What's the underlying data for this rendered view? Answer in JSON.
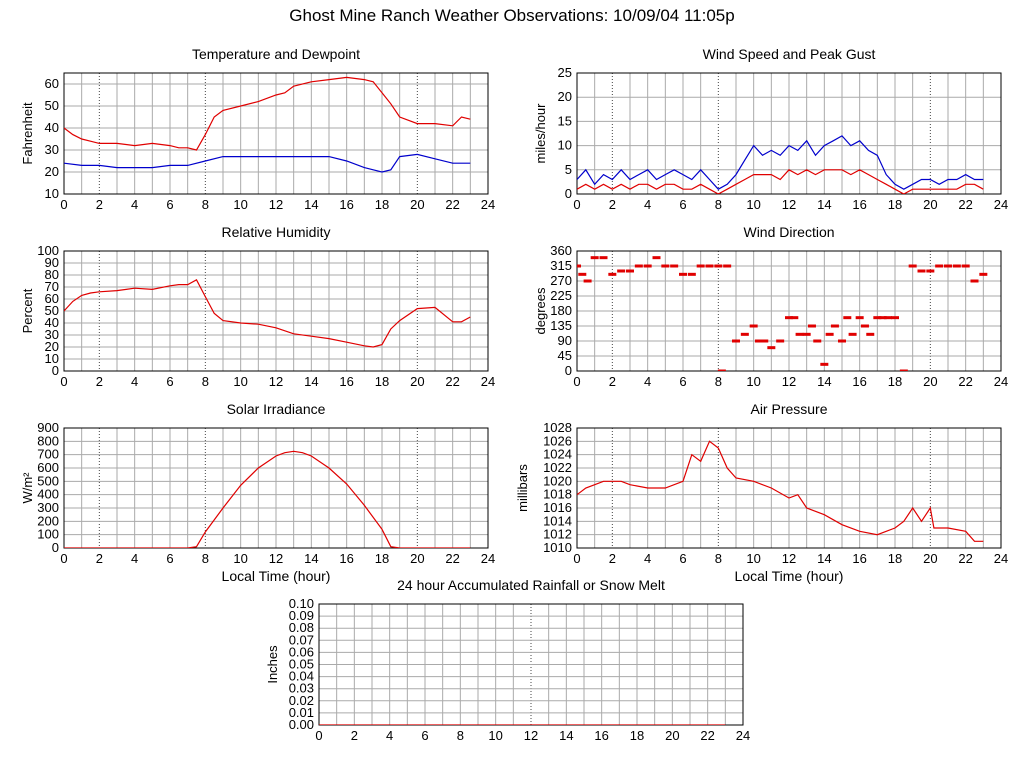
{
  "page": {
    "title": "Ghost Mine Ranch Weather Observations: 10/09/04 11:05p"
  },
  "colors": {
    "red": "#e00000",
    "blue": "#0000cc",
    "grid": "#aaaaaa",
    "major_grid": "#444444"
  },
  "chart_data": [
    {
      "id": "temp",
      "type": "line",
      "title": "Temperature and Dewpoint",
      "ylabel": "Fahrenheit",
      "xlabel": "",
      "xlim": [
        0,
        24
      ],
      "ylim": [
        10,
        65
      ],
      "yticks": [
        10,
        20,
        30,
        40,
        50,
        60
      ],
      "xticks": [
        0,
        2,
        4,
        6,
        8,
        10,
        12,
        14,
        16,
        18,
        20,
        22,
        24
      ],
      "series": [
        {
          "color": "red",
          "x": [
            0,
            0.5,
            1,
            1.5,
            2,
            3,
            4,
            5,
            6,
            6.5,
            7,
            7.5,
            8,
            8.5,
            9,
            10,
            11,
            12,
            12.5,
            13,
            14,
            15,
            16,
            17,
            17.5,
            18,
            18.5,
            19,
            20,
            21,
            22,
            22.5,
            23
          ],
          "y": [
            40,
            37,
            35,
            34,
            33,
            33,
            32,
            33,
            32,
            31,
            31,
            30,
            37,
            45,
            48,
            50,
            52,
            55,
            56,
            59,
            61,
            62,
            63,
            62,
            61,
            56,
            51,
            45,
            42,
            42,
            41,
            45,
            44
          ]
        },
        {
          "color": "blue",
          "x": [
            0,
            1,
            2,
            3,
            4,
            5,
            6,
            7,
            8,
            9,
            10,
            11,
            12,
            13,
            14,
            15,
            16,
            17,
            17.5,
            18,
            18.5,
            19,
            20,
            21,
            22,
            23
          ],
          "y": [
            24,
            23,
            23,
            22,
            22,
            22,
            23,
            23,
            25,
            27,
            27,
            27,
            27,
            27,
            27,
            27,
            25,
            22,
            21,
            20,
            21,
            27,
            28,
            26,
            24,
            24
          ]
        }
      ]
    },
    {
      "id": "wind",
      "type": "line",
      "title": "Wind Speed and Peak Gust",
      "ylabel": "miles/hour",
      "xlabel": "",
      "xlim": [
        0,
        24
      ],
      "ylim": [
        0,
        25
      ],
      "yticks": [
        0,
        5,
        10,
        15,
        20,
        25
      ],
      "xticks": [
        0,
        2,
        4,
        6,
        8,
        10,
        12,
        14,
        16,
        18,
        20,
        22,
        24
      ],
      "series": [
        {
          "color": "blue",
          "x": [
            0,
            0.5,
            1,
            1.5,
            2,
            2.5,
            3,
            3.5,
            4,
            4.5,
            5,
            5.5,
            6,
            6.5,
            7,
            7.5,
            8,
            8.5,
            9,
            9.5,
            10,
            10.5,
            11,
            11.5,
            12,
            12.5,
            13,
            13.5,
            14,
            14.5,
            15,
            15.5,
            16,
            16.5,
            17,
            17.5,
            18,
            18.5,
            19,
            19.5,
            20,
            20.5,
            21,
            21.5,
            22,
            22.5,
            23
          ],
          "y": [
            3,
            5,
            2,
            4,
            3,
            5,
            3,
            4,
            5,
            3,
            4,
            5,
            4,
            3,
            5,
            3,
            1,
            2,
            4,
            7,
            10,
            8,
            9,
            8,
            10,
            9,
            11,
            8,
            10,
            11,
            12,
            10,
            11,
            9,
            8,
            4,
            2,
            1,
            2,
            3,
            3,
            2,
            3,
            3,
            4,
            3,
            3
          ]
        },
        {
          "color": "red",
          "x": [
            0,
            0.5,
            1,
            1.5,
            2,
            2.5,
            3,
            3.5,
            4,
            4.5,
            5,
            5.5,
            6,
            6.5,
            7,
            7.5,
            8,
            8.5,
            9,
            9.5,
            10,
            10.5,
            11,
            11.5,
            12,
            12.5,
            13,
            13.5,
            14,
            14.5,
            15,
            15.5,
            16,
            16.5,
            17,
            17.5,
            18,
            18.5,
            19,
            19.5,
            20,
            20.5,
            21,
            21.5,
            22,
            22.5,
            23
          ],
          "y": [
            1,
            2,
            1,
            2,
            1,
            2,
            1,
            2,
            2,
            1,
            2,
            2,
            1,
            1,
            2,
            1,
            0,
            1,
            2,
            3,
            4,
            4,
            4,
            3,
            5,
            4,
            5,
            4,
            5,
            5,
            5,
            4,
            5,
            4,
            3,
            2,
            1,
            0,
            1,
            1,
            1,
            1,
            1,
            1,
            2,
            2,
            1
          ]
        }
      ]
    },
    {
      "id": "rh",
      "type": "line",
      "title": "Relative Humidity",
      "ylabel": "Percent",
      "xlabel": "",
      "xlim": [
        0,
        24
      ],
      "ylim": [
        0,
        100
      ],
      "yticks": [
        0,
        10,
        20,
        30,
        40,
        50,
        60,
        70,
        80,
        90,
        100
      ],
      "xticks": [
        0,
        2,
        4,
        6,
        8,
        10,
        12,
        14,
        16,
        18,
        20,
        22,
        24
      ],
      "series": [
        {
          "color": "red",
          "x": [
            0,
            0.5,
            1,
            1.5,
            2,
            3,
            4,
            5,
            6,
            6.5,
            7,
            7.5,
            8,
            8.5,
            9,
            10,
            11,
            12,
            13,
            14,
            15,
            16,
            17,
            17.5,
            18,
            18.5,
            19,
            20,
            21,
            22,
            22.5,
            23
          ],
          "y": [
            50,
            58,
            63,
            65,
            66,
            67,
            69,
            68,
            71,
            72,
            72,
            76,
            62,
            48,
            42,
            40,
            39,
            36,
            31,
            29,
            27,
            24,
            21,
            20,
            22,
            35,
            42,
            52,
            53,
            41,
            41,
            45
          ]
        }
      ]
    },
    {
      "id": "dir",
      "type": "scatter",
      "title": "Wind Direction",
      "ylabel": "degrees",
      "xlabel": "",
      "xlim": [
        0,
        24
      ],
      "ylim": [
        0,
        360
      ],
      "yticks": [
        0,
        45,
        90,
        135,
        180,
        225,
        270,
        315,
        360
      ],
      "xticks": [
        0,
        2,
        4,
        6,
        8,
        10,
        12,
        14,
        16,
        18,
        20,
        22,
        24
      ],
      "series": [
        {
          "color": "red",
          "x": [
            0,
            0.3,
            0.6,
            1,
            1.5,
            2,
            2.5,
            3,
            3.5,
            4,
            4.5,
            5,
            5.5,
            6,
            6.5,
            7,
            7.5,
            8,
            8.5,
            8.2,
            9,
            9.5,
            10,
            10.3,
            10.6,
            11,
            11.5,
            12,
            12.3,
            12.6,
            13,
            13.3,
            13.6,
            14,
            14.3,
            14.6,
            15,
            15.3,
            15.6,
            16,
            16.3,
            16.6,
            17,
            17.3,
            17.6,
            18,
            18.5,
            19,
            19.5,
            20,
            20.5,
            21,
            21.5,
            22,
            22.5,
            23
          ],
          "y": [
            315,
            290,
            270,
            340,
            340,
            290,
            300,
            300,
            315,
            315,
            340,
            315,
            315,
            290,
            290,
            315,
            315,
            315,
            315,
            0,
            90,
            110,
            135,
            90,
            90,
            70,
            90,
            160,
            160,
            110,
            110,
            135,
            90,
            20,
            110,
            135,
            90,
            160,
            110,
            160,
            135,
            110,
            160,
            160,
            160,
            160,
            0,
            315,
            300,
            300,
            315,
            315,
            315,
            315,
            270,
            290
          ]
        }
      ]
    },
    {
      "id": "solar",
      "type": "line",
      "title": "Solar Irradiance",
      "ylabel": "W/m²",
      "xlabel": "Local Time (hour)",
      "xlim": [
        0,
        24
      ],
      "ylim": [
        0,
        900
      ],
      "yticks": [
        0,
        100,
        200,
        300,
        400,
        500,
        600,
        700,
        800,
        900
      ],
      "xticks": [
        0,
        2,
        4,
        6,
        8,
        10,
        12,
        14,
        16,
        18,
        20,
        22,
        24
      ],
      "series": [
        {
          "color": "red",
          "x": [
            0,
            7,
            7.5,
            8,
            9,
            10,
            11,
            12,
            12.5,
            13,
            13.5,
            14,
            15,
            16,
            17,
            18,
            18.5,
            19,
            23
          ],
          "y": [
            0,
            0,
            10,
            120,
            300,
            470,
            600,
            690,
            715,
            725,
            715,
            690,
            600,
            480,
            320,
            140,
            10,
            0,
            0
          ]
        }
      ]
    },
    {
      "id": "pressure",
      "type": "line",
      "title": "Air Pressure",
      "ylabel": "millibars",
      "xlabel": "Local Time (hour)",
      "xlim": [
        0,
        24
      ],
      "ylim": [
        1010,
        1028
      ],
      "yticks": [
        1010,
        1012,
        1014,
        1016,
        1018,
        1020,
        1022,
        1024,
        1026,
        1028
      ],
      "xticks": [
        0,
        2,
        4,
        6,
        8,
        10,
        12,
        14,
        16,
        18,
        20,
        22,
        24
      ],
      "series": [
        {
          "color": "red",
          "x": [
            0,
            0.5,
            1,
            1.5,
            2,
            2.5,
            3,
            4,
            5,
            6,
            6.5,
            7,
            7.5,
            8,
            8.5,
            9,
            10,
            11,
            12,
            12.5,
            13,
            14,
            15,
            16,
            17,
            18,
            18.5,
            19,
            19.5,
            20,
            20.2,
            20.5,
            21,
            22,
            22.5,
            23
          ],
          "y": [
            1018,
            1019,
            1019.5,
            1020,
            1020,
            1020,
            1019.5,
            1019,
            1019,
            1020,
            1024,
            1023,
            1026,
            1025,
            1022,
            1020.5,
            1020,
            1019,
            1017.5,
            1018,
            1016,
            1015,
            1013.5,
            1012.5,
            1012,
            1013,
            1014,
            1016,
            1014,
            1016,
            1013,
            1013,
            1013,
            1012.5,
            1011,
            1011
          ]
        }
      ]
    },
    {
      "id": "rain",
      "type": "line",
      "title": "24 hour Accumulated Rainfall or Snow Melt",
      "ylabel": "Inches",
      "xlabel": "",
      "xlim": [
        0,
        24
      ],
      "ylim": [
        0,
        0.1
      ],
      "yticks": [
        0,
        0.01,
        0.02,
        0.03,
        0.04,
        0.05,
        0.06,
        0.07,
        0.08,
        0.09,
        0.1
      ],
      "ytick_labels": [
        "0.00",
        "0.01",
        "0.02",
        "0.03",
        "0.04",
        "0.05",
        "0.06",
        "0.07",
        "0.08",
        "0.09",
        "0.10"
      ],
      "xticks": [
        0,
        2,
        4,
        6,
        8,
        10,
        12,
        14,
        16,
        18,
        20,
        22,
        24
      ],
      "series": [
        {
          "color": "red",
          "x": [
            0,
            23
          ],
          "y": [
            0,
            0
          ]
        }
      ]
    }
  ]
}
